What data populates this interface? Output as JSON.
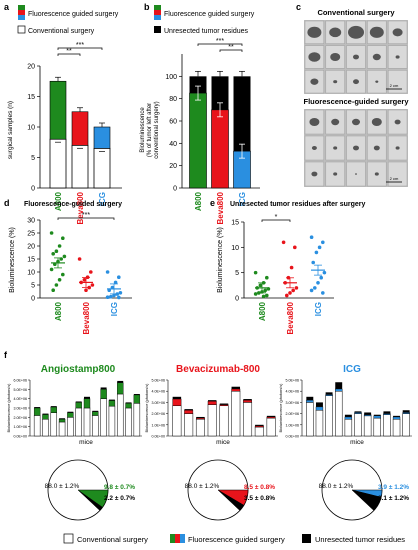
{
  "panel_labels": {
    "a": "a",
    "b": "b",
    "c": "c",
    "d": "d",
    "e": "e",
    "f": "f"
  },
  "legend_a": {
    "fluor": "Fluorescence guided surgery",
    "conv": "Conventional surgery"
  },
  "legend_b": {
    "fluor": "Fluorescence guided surgery",
    "unres": "Unresected tumor residues"
  },
  "sig": {
    "s2": "**",
    "s3": "***",
    "s1": "*"
  },
  "group_names": [
    "A800",
    "Beva800",
    "ICG"
  ],
  "colors": {
    "A800": "#1e8a1e",
    "Beva800": "#e8141b",
    "ICG": "#2a8fe0",
    "black": "#000000"
  },
  "panel_c": {
    "title_top": "Conventional surgery",
    "title_bottom": "Fluorescence-guided surgery",
    "scale": "2 cm"
  },
  "panel_d_title": "Fluorescence-guided surgery",
  "panel_e_title": "Unresected tumor residues after surgery",
  "panel_f_titles": [
    "Angiostamp800",
    "Bevacizumab-800",
    "ICG"
  ],
  "panel_f_xlabel": "mice",
  "panel_f_ylabel": "Bioluminescence (photons/s)",
  "pies": [
    {
      "conv": "88.0 ± 1.2%",
      "fluor": "9.8 ± 0.7%",
      "unres": "2.2 ± 0.7%"
    },
    {
      "conv": "88.0 ± 1.2%",
      "fluor": "8.5 ± 0.8%",
      "unres": "3.5 ± 0.8%"
    },
    {
      "conv": "88.0 ± 1.2%",
      "fluor": "3.9 ± 1.2%",
      "unres": "8.1 ± 1.2%"
    }
  ],
  "legend_f": {
    "conv": "Conventional surgery",
    "fluor": "Fluorescence guided surgery",
    "unres": "Unresected tumor residues"
  },
  "chart_data": [
    {
      "type": "bar",
      "panel": "a",
      "ylabel": "surgical samples (n)",
      "ylim": [
        0,
        20
      ],
      "yticks": [
        0,
        5,
        10,
        15,
        20
      ],
      "categories": [
        "A800",
        "Beva800",
        "ICG"
      ],
      "series": [
        {
          "name": "Conventional surgery",
          "values": [
            8,
            7,
            6.5
          ]
        },
        {
          "name": "Fluorescence guided surgery",
          "values": [
            9.5,
            5.5,
            3.5
          ]
        }
      ]
    },
    {
      "type": "bar",
      "panel": "b",
      "ylabel": "Bioluminescence (% of tumor left after conventional surgery)",
      "ylim": [
        0,
        120
      ],
      "yticks": [
        0,
        20,
        40,
        60,
        80,
        100
      ],
      "categories": [
        "A800",
        "Beva800",
        "ICG"
      ],
      "series": [
        {
          "name": "Fluorescence guided surgery",
          "values": [
            85,
            70,
            33
          ]
        },
        {
          "name": "Unresected tumor residues",
          "values": [
            15,
            30,
            67
          ]
        }
      ]
    },
    {
      "type": "scatter",
      "panel": "d",
      "ylabel": "Bioluminescence (%)",
      "ylim": [
        0,
        30
      ],
      "yticks": [
        0,
        5,
        10,
        15,
        20,
        25,
        30
      ],
      "categories": [
        "A800",
        "Beva800",
        "ICG"
      ],
      "points": [
        [
          25,
          23,
          20,
          18,
          17,
          16,
          15,
          14,
          13,
          11,
          9,
          7,
          5,
          3
        ],
        [
          15,
          10,
          8,
          7,
          6,
          5,
          4,
          3
        ],
        [
          10,
          8,
          6,
          4,
          3,
          2,
          1.5,
          1,
          0.5,
          0.3,
          0.2
        ]
      ],
      "means": [
        13.5,
        6,
        3.5
      ]
    },
    {
      "type": "scatter",
      "panel": "e",
      "ylabel": "Bioluminescence (%)",
      "ylim": [
        0,
        15
      ],
      "yticks": [
        0,
        5,
        10,
        15
      ],
      "categories": [
        "A800",
        "Beva800",
        "ICG"
      ],
      "points": [
        [
          5,
          4,
          3,
          2.5,
          2,
          1.8,
          1.5,
          1.2,
          1,
          0.8,
          0.5,
          0.3
        ],
        [
          11,
          10,
          6,
          4,
          3,
          2,
          1.5,
          1,
          0.5
        ],
        [
          12,
          11,
          10,
          9,
          7,
          5,
          4,
          3,
          2,
          1.5,
          1
        ]
      ],
      "means": [
        2,
        3,
        5.5
      ]
    },
    {
      "type": "bar",
      "panel": "f1",
      "xlabel": "mice",
      "ylabel": "Bioluminescence (photons/s)",
      "yticks": [
        "0.0E+00",
        "1.0E+06",
        "2.0E+06",
        "3.0E+06",
        "4.0E+06",
        "5.0E+06",
        "6.0E+06"
      ],
      "series": [
        {
          "name": "Conventional surgery",
          "values": [
            2.2,
            1.8,
            2.5,
            1.5,
            2.0,
            3.0,
            3.0,
            2.2,
            4.0,
            3.2,
            4.5,
            3.0,
            3.5
          ]
        },
        {
          "name": "Fluorescence guided surgery",
          "values": [
            0.8,
            0.5,
            0.6,
            0.3,
            0.5,
            0.6,
            1.0,
            0.4,
            1.0,
            0.6,
            1.2,
            0.5,
            0.9
          ]
        },
        {
          "name": "Unresected tumor residues",
          "values": [
            0.1,
            0.1,
            0.1,
            0.1,
            0.1,
            0.1,
            0.2,
            0.1,
            0.2,
            0.1,
            0.2,
            0.1,
            0.1
          ]
        }
      ]
    },
    {
      "type": "bar",
      "panel": "f2",
      "xlabel": "mice",
      "ylabel": "Bioluminescence (photons/s)",
      "yticks": [
        "0.0E+00",
        "1.0E+06",
        "2.0E+06",
        "3.0E+06",
        "4.0E+06",
        "5.0E+06"
      ],
      "series": [
        {
          "name": "Conventional surgery",
          "values": [
            2.7,
            2.0,
            1.5,
            2.8,
            2.7,
            4.0,
            3.0,
            0.8,
            1.6
          ]
        },
        {
          "name": "Fluorescence guided surgery",
          "values": [
            0.6,
            0.3,
            0.1,
            0.3,
            0.1,
            0.2,
            0.2,
            0.1,
            0.1
          ]
        },
        {
          "name": "Unresected tumor residues",
          "values": [
            0.2,
            0.1,
            0.1,
            0.1,
            0.1,
            0.2,
            0.1,
            0.1,
            0.1
          ]
        }
      ]
    },
    {
      "type": "bar",
      "panel": "f3",
      "xlabel": "mice",
      "ylabel": "Bioluminescence (photons/s)",
      "yticks": [
        "0.0E+00",
        "1.0E+06",
        "2.0E+06",
        "3.0E+06",
        "4.0E+06",
        "5.0E+06"
      ],
      "series": [
        {
          "name": "Conventional surgery",
          "values": [
            3.0,
            2.3,
            3.6,
            4.0,
            1.5,
            2.0,
            1.8,
            1.6,
            1.9,
            1.5,
            2.0
          ]
        },
        {
          "name": "Fluorescence guided surgery",
          "values": [
            0.2,
            0.3,
            0.1,
            0.2,
            0.2,
            0.1,
            0.1,
            0.2,
            0.1,
            0.2,
            0.1
          ]
        },
        {
          "name": "Unresected tumor residues",
          "values": [
            0.3,
            0.4,
            0.2,
            0.6,
            0.2,
            0.1,
            0.2,
            0.1,
            0.2,
            0.1,
            0.2
          ]
        }
      ]
    },
    {
      "type": "pie",
      "panel": "f-pies",
      "labels": [
        "Conventional surgery",
        "Fluorescence guided surgery",
        "Unresected tumor residues"
      ],
      "values": [
        [
          88.0,
          9.8,
          2.2
        ],
        [
          88.0,
          8.5,
          3.5
        ],
        [
          88.0,
          3.9,
          8.1
        ]
      ]
    }
  ]
}
